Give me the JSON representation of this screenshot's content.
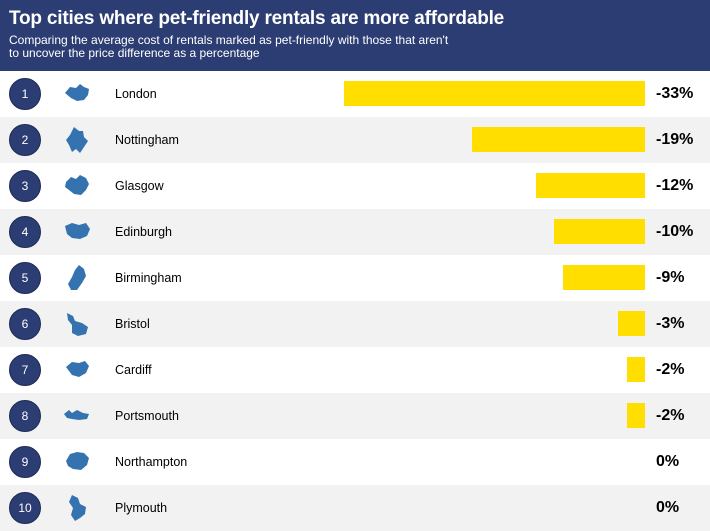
{
  "header": {
    "title": "Top cities where pet-friendly rentals are more affordable",
    "subtitle": "Comparing the average cost of rentals marked as pet-friendly with those that aren't to uncover the price difference as a percentage"
  },
  "colors": {
    "header_bg": "#2c3d73",
    "rank_bg": "#2c3d73",
    "bar": "#ffde00",
    "icon": "#3473b0",
    "row_alt": "#f2f2f2"
  },
  "chart_data": {
    "type": "bar",
    "title": "Top cities where pet-friendly rentals are more affordable",
    "subtitle": "Comparing the average cost of rentals marked as pet-friendly with those that aren't to uncover the price difference as a percentage",
    "orientation": "horizontal",
    "unit": "%",
    "categories": [
      "London",
      "Nottingham",
      "Glasgow",
      "Edinburgh",
      "Birmingham",
      "Bristol",
      "Cardiff",
      "Portsmouth",
      "Northampton",
      "Plymouth"
    ],
    "ranks": [
      "1",
      "2",
      "3",
      "4",
      "5",
      "6",
      "7",
      "8",
      "9",
      "10"
    ],
    "values": [
      -33,
      -19,
      -12,
      -10,
      -9,
      -3,
      -2,
      -2,
      0,
      0
    ],
    "labels": [
      "-33%",
      "-19%",
      "-12%",
      "-10%",
      "-9%",
      "-3%",
      "-2%",
      "-2%",
      "0%",
      "0%"
    ],
    "xlim": [
      -33,
      0
    ],
    "icons": [
      "london-map-icon",
      "nottingham-map-icon",
      "glasgow-map-icon",
      "edinburgh-map-icon",
      "birmingham-map-icon",
      "bristol-map-icon",
      "cardiff-map-icon",
      "portsmouth-map-icon",
      "northampton-map-icon",
      "plymouth-map-icon"
    ]
  }
}
